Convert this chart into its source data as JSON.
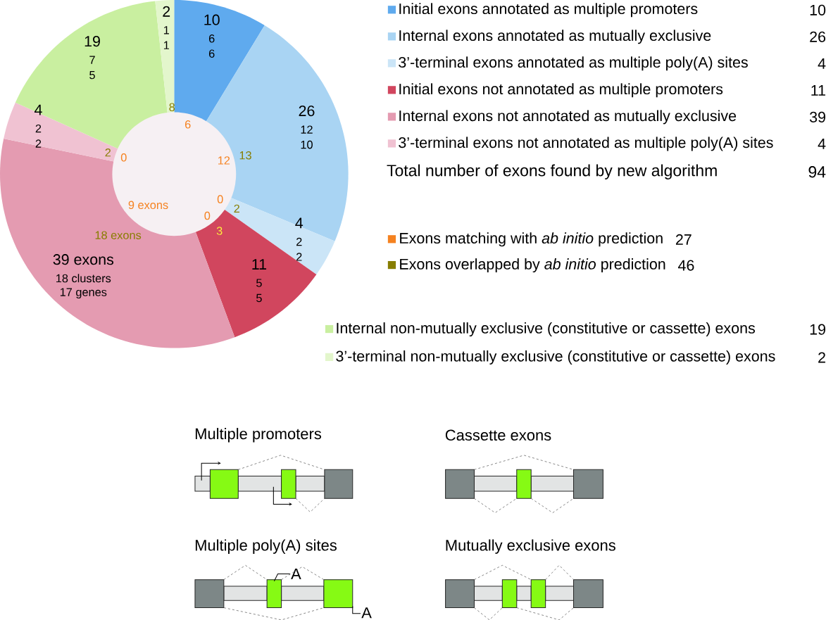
{
  "chart_data": {
    "type": "donut",
    "categories": [
      "Initial exons annotated as multiple promoters",
      "Internal exons annotated as mutually exclusive",
      "3’-terminal exons annotated as multiple poly(A) sites",
      "Initial exons not annotated as multiple promoters",
      "Internal exons not annotated as mutually exclusive",
      "3’-terminal exons not annotated as multiple poly(A) sites",
      "Internal non-mutually exclusive (constitutive or cassette) exons",
      "3’-terminal non-mutually exclusive (constitutive or cassette) exons"
    ],
    "values": [
      10,
      26,
      4,
      11,
      39,
      4,
      19,
      2
    ],
    "colors": [
      "#5faaee",
      "#a9d4f3",
      "#cbe5f7",
      "#d1465e",
      "#e49bb1",
      "#f0c2d2",
      "#c9efa0",
      "#e3f6cc"
    ],
    "value_labels": [
      "10",
      "26",
      "4",
      "11",
      "39 exons",
      "4",
      "19",
      "2"
    ],
    "legend": "right",
    "annotations": [
      "6",
      "6",
      "12",
      "10",
      "2",
      "2",
      "5",
      "5",
      "18 clusters",
      "17 genes",
      "2",
      "2",
      "7",
      "5",
      "1",
      "1",
      "8",
      "6",
      "12",
      "13",
      "0",
      "2",
      "0",
      "3",
      "9 exons",
      "18 exons",
      "2",
      "0",
      "Total number of exons found by new algorithm",
      "94",
      "Exons matching with *ab initio* prediction",
      "27",
      "Exons overlapped by *ab initio* prediction",
      "46",
      "Multiple promoters",
      "Cassette exons",
      "Multiple poly(A) sites",
      "Mutually exclusive exons",
      "A",
      "A",
      "10",
      "26",
      "4",
      "11",
      "39",
      "4",
      "19",
      "2"
    ]
  }
}
